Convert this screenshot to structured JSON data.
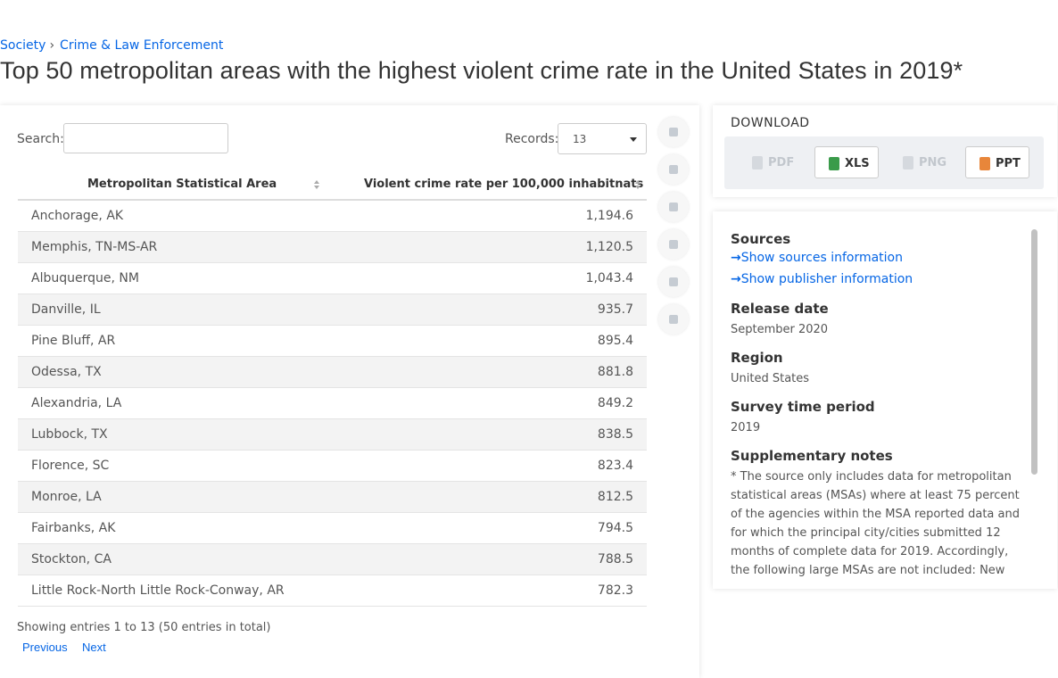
{
  "breadcrumb": [
    "Society",
    "Crime & Law Enforcement"
  ],
  "title": "Top 50 metropolitan areas with the highest violent crime rate in the United States in 2019*",
  "controls": {
    "search_label": "Search:",
    "records_label": "Records:",
    "records_value": "13"
  },
  "table": {
    "columns": [
      "Metropolitan Statistical Area",
      "Violent crime rate per 100,000 inhabitnats"
    ],
    "rows": [
      [
        "Anchorage, AK",
        "1,194.6"
      ],
      [
        "Memphis, TN-MS-AR",
        "1,120.5"
      ],
      [
        "Albuquerque, NM",
        "1,043.4"
      ],
      [
        "Danville, IL",
        "935.7"
      ],
      [
        "Pine Bluff, AR",
        "895.4"
      ],
      [
        "Odessa, TX",
        "881.8"
      ],
      [
        "Alexandria, LA",
        "849.2"
      ],
      [
        "Lubbock, TX",
        "838.5"
      ],
      [
        "Florence, SC",
        "823.4"
      ],
      [
        "Monroe, LA",
        "812.5"
      ],
      [
        "Fairbanks, AK",
        "794.5"
      ],
      [
        "Stockton, CA",
        "788.5"
      ],
      [
        "Little Rock-North Little Rock-Conway, AR",
        "782.3"
      ]
    ]
  },
  "pagination": {
    "summary": "Showing entries 1 to 13 (50 entries in total)",
    "previous": "Previous",
    "next": "Next"
  },
  "download": {
    "title": "DOWNLOAD",
    "buttons": [
      "PDF",
      "XLS",
      "PNG",
      "PPT"
    ]
  },
  "info": {
    "sources_heading": "Sources",
    "sources_link": "Show sources information",
    "publisher_link": "Show publisher information",
    "release_heading": "Release date",
    "release": "September 2020",
    "region_heading": "Region",
    "region": "United States",
    "period_heading": "Survey time period",
    "period": "2019",
    "notes_heading": "Supplementary notes",
    "notes": "* The source only includes data for metropolitan statistical areas (MSAs) where at least 75 percent of the agencies within the MSA reported data and for which the principal city/cities submitted 12 months of complete data for 2019. Accordingly, the following large MSAs are not included: New York"
  }
}
